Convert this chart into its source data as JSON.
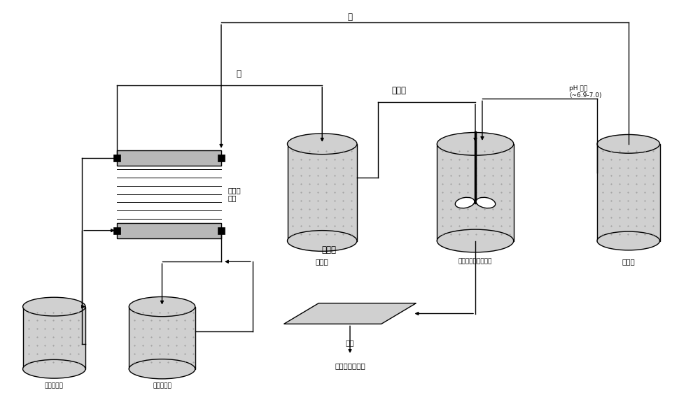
{
  "bg_color": "#ffffff",
  "line_color": "#000000",
  "gray_fill": "#b8b8b8",
  "dotted_fill": "#d0d0d0",
  "labels": {
    "acid_top": "酸",
    "base": "碱",
    "alkaline_hydrolysis": "碱水解",
    "ph_control": "pH 控制\n(~6.9-7.0)",
    "sodium_sulfate": "硫酸钓",
    "filtration": "过滤",
    "bipolar_membrane": "双极膜\n膜堆",
    "base_tank": "碱储罐",
    "insoluble_tank": "非水溢性有机酸储罐",
    "acid_tank": "酸储罐",
    "electrode_tank": "电极液储罐",
    "sodium_sulfate_tank": "硫酸钓储罐",
    "insoluble_acid": "非水溢性有机酸"
  }
}
